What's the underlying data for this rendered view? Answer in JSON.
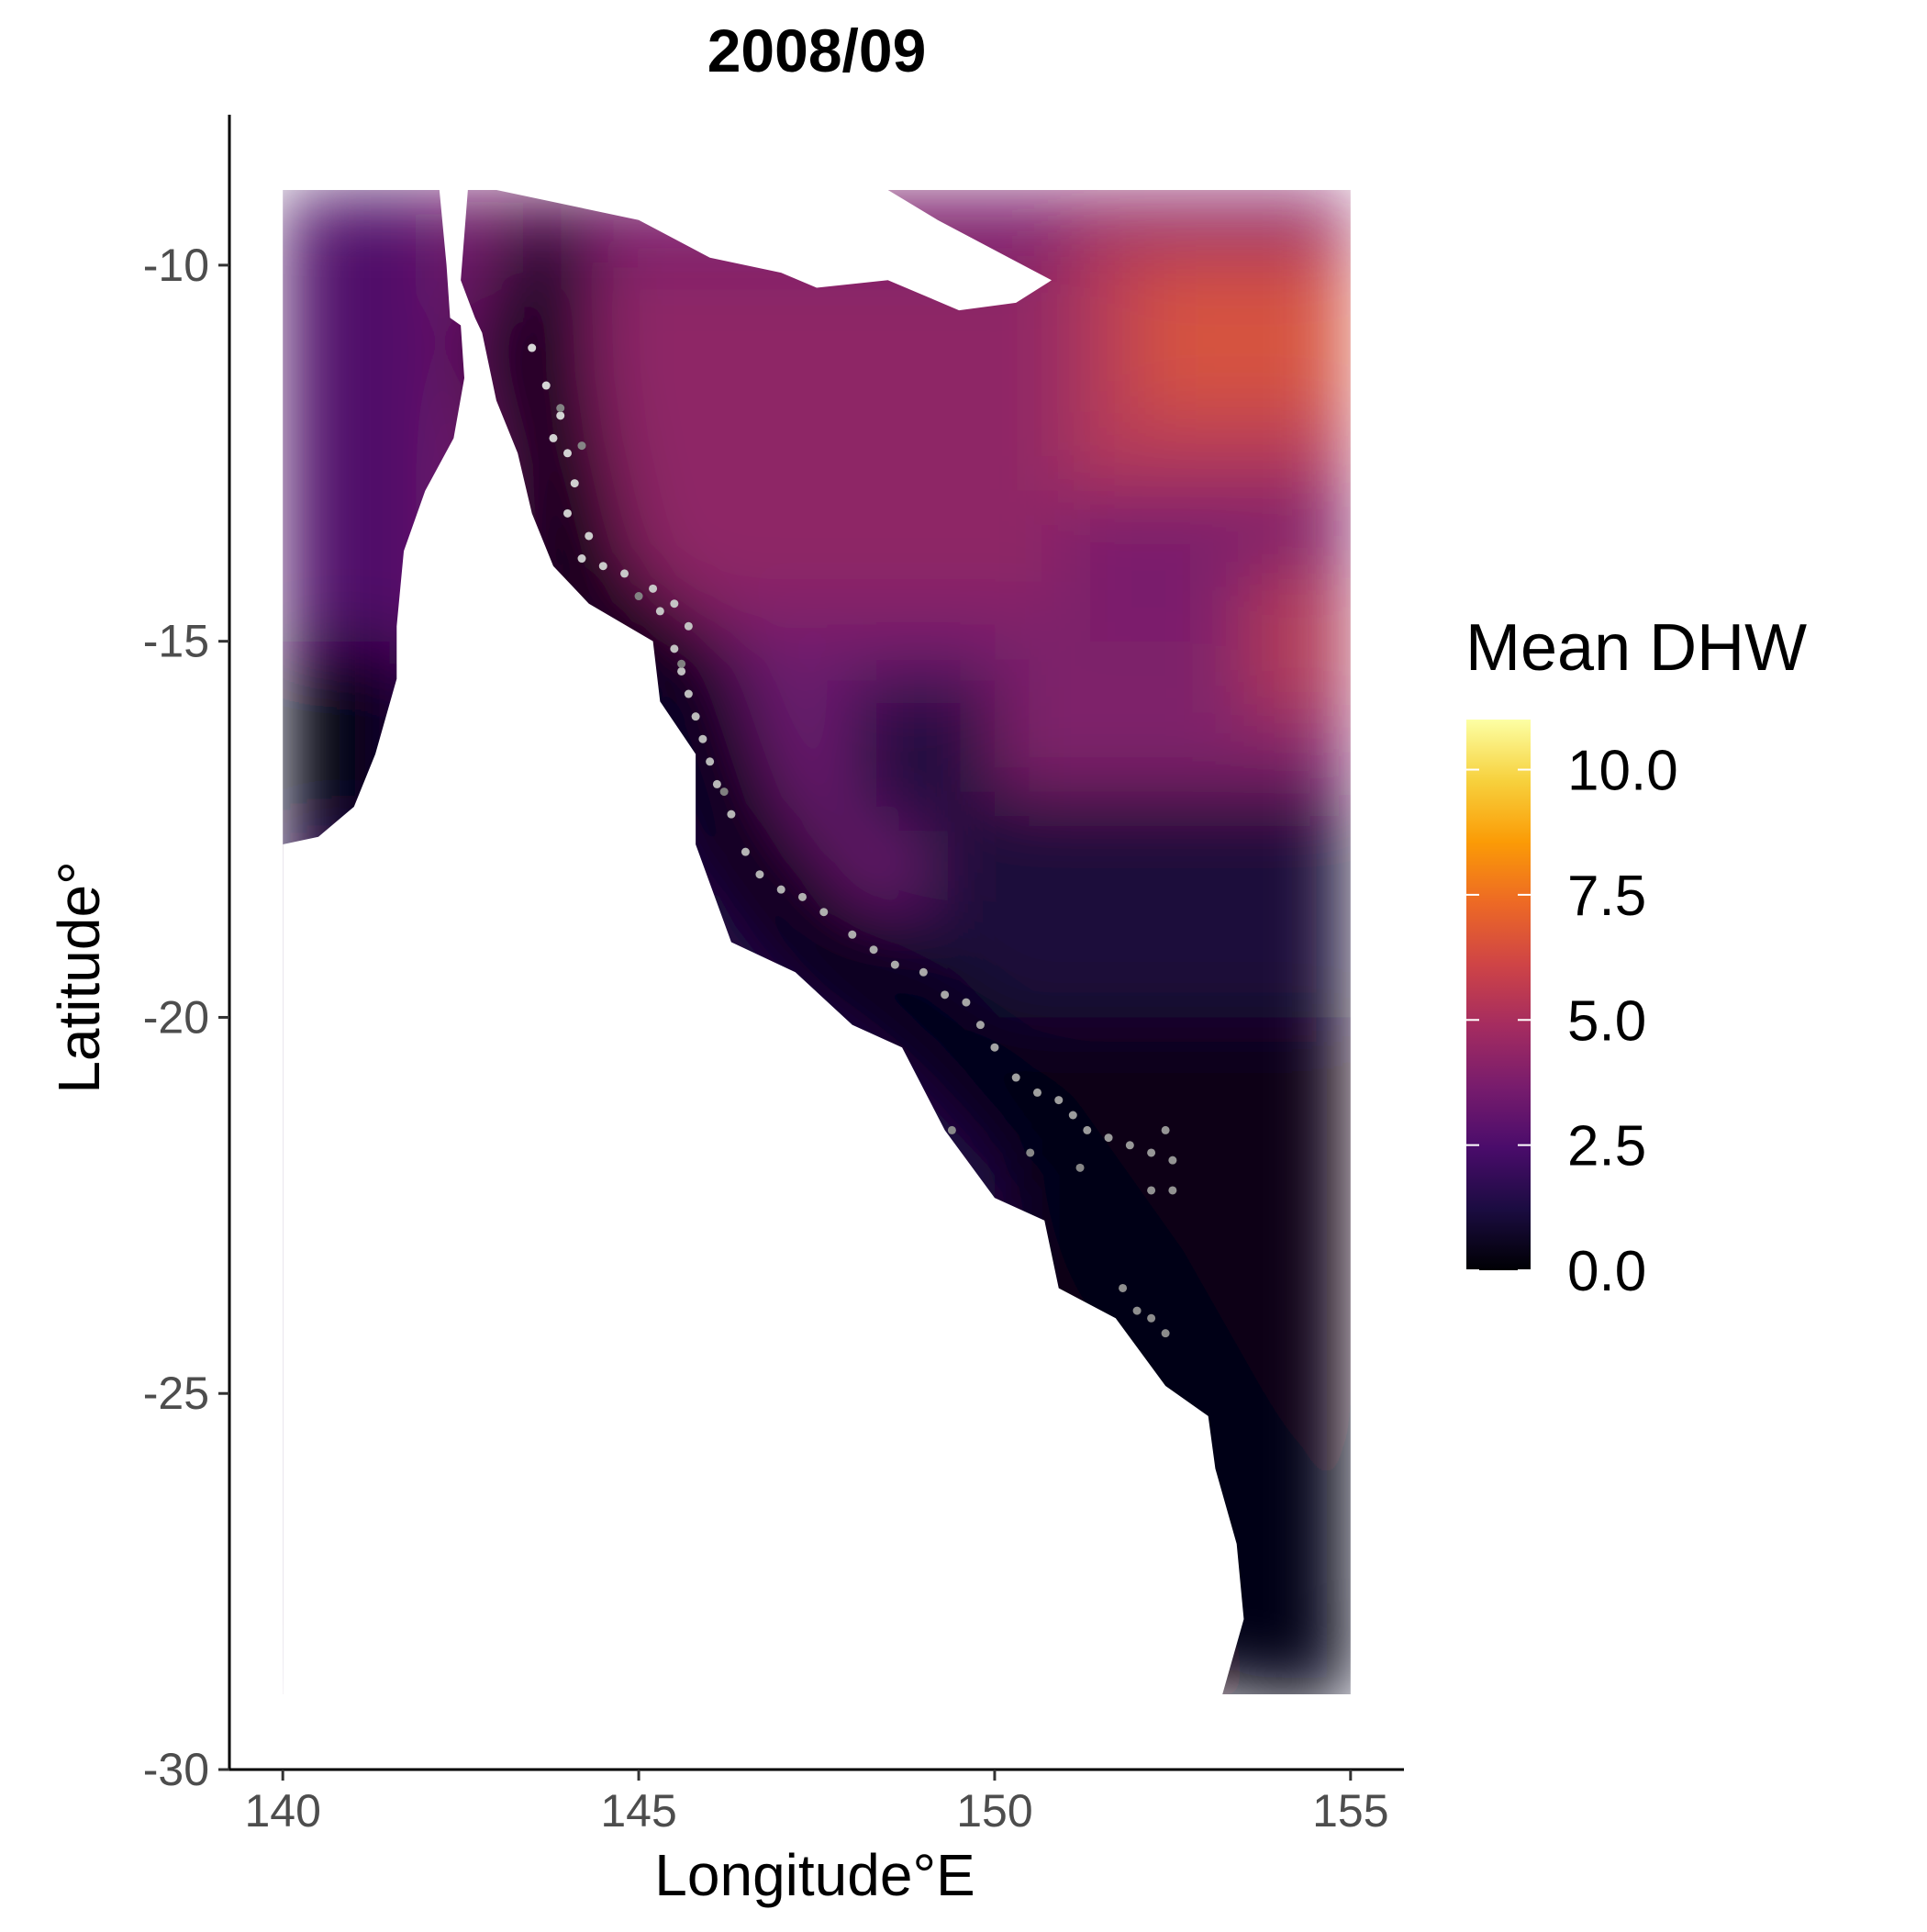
{
  "chart_data": {
    "type": "heatmap",
    "title": "2008/09",
    "xlabel": "Longitude°E",
    "ylabel": "Latitude°",
    "xlim": [
      139.25,
      155.75
    ],
    "ylim": [
      -30,
      -8
    ],
    "x_ticks": [
      140,
      145,
      150,
      155
    ],
    "y_ticks": [
      -10,
      -15,
      -20,
      -25,
      -30
    ],
    "x_tick_labels": [
      "140",
      "145",
      "150",
      "155"
    ],
    "y_tick_labels": [
      "-10",
      "-15",
      "-20",
      "-25",
      "-30"
    ],
    "grid": false,
    "legend": {
      "title": "Mean DHW",
      "placement": "right",
      "breaks": [
        0.0,
        2.5,
        5.0,
        7.5,
        10.0
      ],
      "labels": [
        "0.0",
        "2.5",
        "5.0",
        "7.5",
        "10.0"
      ],
      "min": 0,
      "max": 11,
      "palette": "inferno",
      "colors": [
        "#000004",
        "#1b0c41",
        "#4a0c6b",
        "#781c6d",
        "#a52c60",
        "#cf4446",
        "#ed6925",
        "#fb9b06",
        "#f7d13d",
        "#fcffa4"
      ]
    },
    "raster_extent": {
      "lon": [
        140,
        155
      ],
      "lat": [
        -29,
        -9
      ]
    },
    "coastline": [
      [
        140.0,
        -9.0
      ],
      [
        142.2,
        -9.0
      ],
      [
        142.3,
        -10.0
      ],
      [
        142.35,
        -10.7
      ],
      [
        142.5,
        -10.8
      ],
      [
        142.55,
        -11.5
      ],
      [
        142.4,
        -12.3
      ],
      [
        142.0,
        -13.0
      ],
      [
        141.7,
        -13.8
      ],
      [
        141.6,
        -14.8
      ],
      [
        141.6,
        -15.5
      ],
      [
        141.3,
        -16.5
      ],
      [
        141.0,
        -17.2
      ],
      [
        140.5,
        -17.6
      ],
      [
        140.0,
        -17.7
      ],
      [
        140.0,
        -29.0
      ],
      [
        153.2,
        -29.0
      ],
      [
        153.5,
        -28.0
      ],
      [
        153.4,
        -27.0
      ],
      [
        153.1,
        -26.0
      ],
      [
        153.0,
        -25.3
      ],
      [
        152.4,
        -24.9
      ],
      [
        151.7,
        -24.0
      ],
      [
        150.9,
        -23.6
      ],
      [
        150.7,
        -22.7
      ],
      [
        150.0,
        -22.4
      ],
      [
        149.3,
        -21.5
      ],
      [
        148.7,
        -20.4
      ],
      [
        148.0,
        -20.1
      ],
      [
        147.2,
        -19.4
      ],
      [
        146.3,
        -19.0
      ],
      [
        145.8,
        -17.7
      ],
      [
        145.8,
        -16.5
      ],
      [
        145.3,
        -15.8
      ],
      [
        145.2,
        -15.0
      ],
      [
        144.3,
        -14.5
      ],
      [
        143.8,
        -14.0
      ],
      [
        143.5,
        -13.3
      ],
      [
        143.3,
        -12.5
      ],
      [
        143.0,
        -11.8
      ],
      [
        142.8,
        -10.9
      ],
      [
        142.7,
        -10.7
      ],
      [
        142.5,
        -10.2
      ],
      [
        142.6,
        -9.0
      ]
    ],
    "png_coast": [
      [
        143.0,
        -9.0
      ],
      [
        145.0,
        -9.4
      ],
      [
        146.0,
        -9.9
      ],
      [
        147.0,
        -10.1
      ],
      [
        147.5,
        -10.3
      ],
      [
        148.5,
        -10.2
      ],
      [
        149.5,
        -10.6
      ],
      [
        150.3,
        -10.5
      ],
      [
        150.8,
        -10.2
      ],
      [
        150.2,
        -9.9
      ],
      [
        149.2,
        -9.4
      ],
      [
        148.5,
        -9.0
      ]
    ],
    "reef_points": [
      [
        143.5,
        -11.1
      ],
      [
        143.7,
        -11.6
      ],
      [
        143.9,
        -12.0
      ],
      [
        144.0,
        -12.5
      ],
      [
        143.8,
        -12.3
      ],
      [
        144.1,
        -12.9
      ],
      [
        144.0,
        -13.3
      ],
      [
        144.3,
        -13.6
      ],
      [
        144.2,
        -13.9
      ],
      [
        144.5,
        -14.0
      ],
      [
        144.8,
        -14.1
      ],
      [
        145.2,
        -14.3
      ],
      [
        145.5,
        -14.5
      ],
      [
        145.3,
        -14.6
      ],
      [
        145.7,
        -14.8
      ],
      [
        145.5,
        -15.1
      ],
      [
        145.6,
        -15.4
      ],
      [
        145.7,
        -15.7
      ],
      [
        145.8,
        -16.0
      ],
      [
        145.9,
        -16.3
      ],
      [
        146.0,
        -16.6
      ],
      [
        146.1,
        -16.9
      ],
      [
        146.3,
        -17.3
      ],
      [
        146.5,
        -17.8
      ],
      [
        146.7,
        -18.1
      ],
      [
        147.0,
        -18.3
      ],
      [
        147.3,
        -18.4
      ],
      [
        147.6,
        -18.6
      ],
      [
        148.0,
        -18.9
      ],
      [
        148.3,
        -19.1
      ],
      [
        148.6,
        -19.3
      ],
      [
        149.0,
        -19.4
      ],
      [
        149.3,
        -19.7
      ],
      [
        149.6,
        -19.8
      ],
      [
        149.8,
        -20.1
      ],
      [
        150.0,
        -20.4
      ],
      [
        150.3,
        -20.8
      ],
      [
        150.6,
        -21.0
      ],
      [
        150.9,
        -21.1
      ],
      [
        151.1,
        -21.3
      ],
      [
        151.3,
        -21.5
      ],
      [
        151.6,
        -21.6
      ],
      [
        151.9,
        -21.7
      ],
      [
        152.2,
        -21.8
      ],
      [
        152.4,
        -21.5
      ],
      [
        152.5,
        -21.9
      ],
      [
        152.5,
        -22.3
      ],
      [
        152.2,
        -22.3
      ],
      [
        151.8,
        -23.6
      ],
      [
        152.0,
        -23.9
      ],
      [
        152.2,
        -24.0
      ],
      [
        152.4,
        -24.2
      ],
      [
        149.4,
        -21.5
      ],
      [
        150.5,
        -21.8
      ],
      [
        151.2,
        -22.0
      ],
      [
        144.2,
        -12.4
      ],
      [
        143.9,
        -11.9
      ],
      [
        145.0,
        -14.4
      ],
      [
        145.6,
        -15.3
      ],
      [
        146.2,
        -17.0
      ]
    ]
  }
}
